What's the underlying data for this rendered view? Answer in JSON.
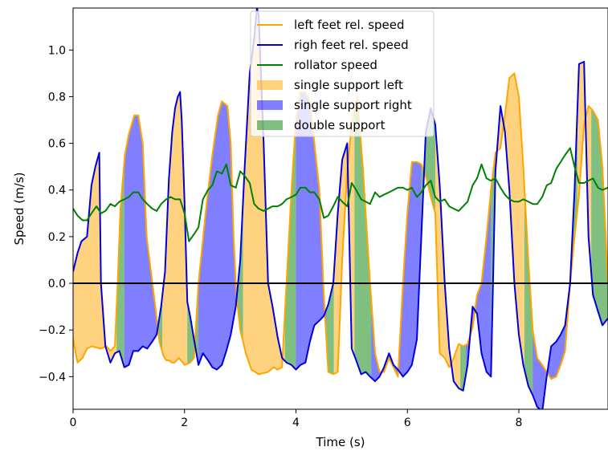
{
  "chart_data": {
    "type": "line",
    "title": "",
    "xlabel": "Time (s)",
    "ylabel": "Speed (m/s)",
    "xlim": [
      0,
      9.6
    ],
    "ylim": [
      -0.54,
      1.18
    ],
    "x_ticks": [
      0,
      2,
      4,
      6,
      8
    ],
    "y_ticks": [
      -0.4,
      -0.2,
      0.0,
      0.2,
      0.4,
      0.6,
      0.8,
      1.0
    ],
    "x_tick_labels": [
      "0",
      "2",
      "4",
      "6",
      "8"
    ],
    "y_tick_labels": [
      "−0.4",
      "−0.2",
      "0.0",
      "0.2",
      "0.4",
      "0.6",
      "0.8",
      "1.0"
    ],
    "grid": false,
    "legend_position": "top-center",
    "legend": [
      {
        "label": "left feet rel. speed",
        "kind": "line",
        "color": "#FFA500"
      },
      {
        "label": "righ feet rel. speed",
        "kind": "line",
        "color": "#0000DD"
      },
      {
        "label": "rollator speed",
        "kind": "line",
        "color": "#008000"
      },
      {
        "label": "single support left",
        "kind": "patch",
        "color": "#FFA500"
      },
      {
        "label": "single support right",
        "kind": "patch",
        "color": "#0000FF"
      },
      {
        "label": "double support",
        "kind": "patch",
        "color": "#008000"
      }
    ],
    "series": [
      {
        "name": "left feet rel. speed",
        "color": "#FFA500",
        "x": [
          0.0,
          0.08,
          0.17,
          0.25,
          0.33,
          0.5,
          0.6,
          0.67,
          0.75,
          0.8,
          0.85,
          0.93,
          1.0,
          1.1,
          1.17,
          1.25,
          1.32,
          1.45,
          1.55,
          1.62,
          1.67,
          1.72,
          1.77,
          1.82,
          1.9,
          2.0,
          2.1,
          2.17,
          2.25,
          2.4,
          2.5,
          2.6,
          2.67,
          2.77,
          2.83,
          2.88,
          2.93,
          3.0,
          3.1,
          3.2,
          3.33,
          3.5,
          3.6,
          3.67,
          3.75,
          3.83,
          3.92,
          4.0,
          4.08,
          4.17,
          4.25,
          4.33,
          4.42,
          4.5,
          4.58,
          4.67,
          4.75,
          4.83,
          4.92,
          5.0,
          5.1,
          5.2,
          5.33,
          5.42,
          5.5,
          5.58,
          5.67,
          5.75,
          5.83,
          5.92,
          6.0,
          6.08,
          6.17,
          6.25,
          6.33,
          6.42,
          6.5,
          6.58,
          6.67,
          6.75,
          6.83,
          6.92,
          7.0,
          7.08,
          7.17,
          7.25,
          7.33,
          7.42,
          7.5,
          7.58,
          7.67,
          7.75,
          7.83,
          7.92,
          8.0,
          8.08,
          8.17,
          8.25,
          8.33,
          8.42,
          8.5,
          8.58,
          8.67,
          8.75,
          8.83,
          8.92,
          9.0,
          9.08,
          9.17,
          9.25,
          9.33,
          9.42,
          9.5,
          9.6
        ],
        "y": [
          -0.24,
          -0.34,
          -0.32,
          -0.28,
          -0.27,
          -0.28,
          -0.27,
          -0.29,
          -0.27,
          0.0,
          0.32,
          0.55,
          0.64,
          0.72,
          0.72,
          0.6,
          0.2,
          -0.05,
          -0.25,
          -0.31,
          -0.33,
          -0.33,
          -0.34,
          -0.34,
          -0.32,
          -0.35,
          -0.34,
          -0.32,
          0.0,
          0.35,
          0.55,
          0.72,
          0.78,
          0.76,
          0.6,
          0.2,
          -0.05,
          -0.2,
          -0.3,
          -0.37,
          -0.39,
          -0.38,
          -0.36,
          -0.37,
          -0.36,
          0.0,
          0.4,
          0.7,
          0.82,
          0.82,
          0.78,
          0.6,
          0.4,
          -0.05,
          -0.38,
          -0.39,
          -0.38,
          0.1,
          0.48,
          0.68,
          0.8,
          0.5,
          0.0,
          -0.3,
          -0.38,
          -0.38,
          -0.32,
          -0.36,
          -0.4,
          0.0,
          0.3,
          0.52,
          0.52,
          0.51,
          0.46,
          0.37,
          0.3,
          -0.3,
          -0.32,
          -0.36,
          -0.32,
          -0.26,
          -0.27,
          -0.26,
          -0.19,
          -0.05,
          0.0,
          0.2,
          0.4,
          0.56,
          0.58,
          0.72,
          0.88,
          0.9,
          0.8,
          0.5,
          0.1,
          -0.2,
          -0.32,
          -0.35,
          -0.38,
          -0.41,
          -0.4,
          -0.35,
          -0.29,
          0.0,
          0.2,
          0.38,
          0.68,
          0.76,
          0.74,
          0.7,
          0.5,
          0.0
        ]
      },
      {
        "name": "righ feet rel. speed",
        "color": "#0000DD",
        "x": [
          0.0,
          0.08,
          0.15,
          0.25,
          0.33,
          0.4,
          0.47,
          0.5,
          0.58,
          0.67,
          0.75,
          0.83,
          0.92,
          1.0,
          1.08,
          1.17,
          1.25,
          1.33,
          1.42,
          1.5,
          1.58,
          1.65,
          1.72,
          1.78,
          1.83,
          1.88,
          1.92,
          1.95,
          2.0,
          2.05,
          2.1,
          2.17,
          2.25,
          2.33,
          2.42,
          2.5,
          2.58,
          2.67,
          2.75,
          2.83,
          2.92,
          3.0,
          3.08,
          3.17,
          3.25,
          3.3,
          3.33,
          3.42,
          3.5,
          3.58,
          3.67,
          3.75,
          3.83,
          3.92,
          4.0,
          4.08,
          4.17,
          4.25,
          4.33,
          4.42,
          4.5,
          4.58,
          4.67,
          4.75,
          4.83,
          4.92,
          5.0,
          5.08,
          5.17,
          5.25,
          5.33,
          5.42,
          5.5,
          5.58,
          5.67,
          5.75,
          5.83,
          5.92,
          6.0,
          6.08,
          6.17,
          6.25,
          6.33,
          6.42,
          6.5,
          6.58,
          6.67,
          6.75,
          6.83,
          6.92,
          7.0,
          7.08,
          7.17,
          7.25,
          7.33,
          7.42,
          7.5,
          7.58,
          7.67,
          7.75,
          7.83,
          7.92,
          8.0,
          8.08,
          8.17,
          8.25,
          8.33,
          8.42,
          8.5,
          8.58,
          8.67,
          8.75,
          8.83,
          8.92,
          9.0,
          9.08,
          9.17,
          9.25,
          9.33,
          9.42,
          9.5,
          9.6
        ],
        "y": [
          0.05,
          0.13,
          0.18,
          0.2,
          0.42,
          0.5,
          0.56,
          0.0,
          -0.27,
          -0.34,
          -0.3,
          -0.29,
          -0.36,
          -0.35,
          -0.29,
          -0.29,
          -0.27,
          -0.28,
          -0.25,
          -0.22,
          -0.1,
          0.05,
          0.45,
          0.65,
          0.75,
          0.8,
          0.82,
          0.7,
          0.35,
          -0.08,
          -0.14,
          -0.24,
          -0.35,
          -0.3,
          -0.33,
          -0.36,
          -0.37,
          -0.35,
          -0.29,
          -0.22,
          -0.1,
          0.1,
          0.5,
          0.9,
          1.05,
          1.18,
          1.15,
          0.6,
          0.0,
          -0.1,
          -0.23,
          -0.32,
          -0.34,
          -0.35,
          -0.37,
          -0.35,
          -0.34,
          -0.25,
          -0.18,
          -0.16,
          -0.14,
          -0.09,
          0.0,
          0.3,
          0.53,
          0.6,
          -0.28,
          -0.33,
          -0.39,
          -0.38,
          -0.4,
          -0.42,
          -0.4,
          -0.36,
          -0.3,
          -0.35,
          -0.37,
          -0.4,
          -0.38,
          -0.35,
          -0.24,
          0.2,
          0.65,
          0.75,
          0.68,
          0.42,
          0.0,
          -0.28,
          -0.42,
          -0.45,
          -0.46,
          -0.35,
          -0.1,
          -0.13,
          -0.3,
          -0.38,
          -0.4,
          0.48,
          0.76,
          0.65,
          0.4,
          0.0,
          -0.22,
          -0.35,
          -0.44,
          -0.48,
          -0.53,
          -0.55,
          -0.4,
          -0.27,
          -0.25,
          -0.22,
          -0.18,
          0.0,
          0.4,
          0.94,
          0.95,
          0.2,
          -0.05,
          -0.12,
          -0.18,
          -0.15
        ]
      },
      {
        "name": "rollator speed",
        "color": "#008000",
        "x": [
          0.0,
          0.08,
          0.17,
          0.25,
          0.33,
          0.42,
          0.5,
          0.58,
          0.67,
          0.75,
          0.83,
          0.92,
          1.0,
          1.08,
          1.17,
          1.25,
          1.33,
          1.42,
          1.5,
          1.58,
          1.67,
          1.75,
          1.83,
          1.92,
          2.0,
          2.08,
          2.17,
          2.25,
          2.33,
          2.42,
          2.5,
          2.58,
          2.67,
          2.75,
          2.83,
          2.92,
          3.0,
          3.08,
          3.17,
          3.25,
          3.33,
          3.42,
          3.5,
          3.58,
          3.67,
          3.75,
          3.83,
          3.92,
          4.0,
          4.08,
          4.17,
          4.25,
          4.33,
          4.42,
          4.5,
          4.58,
          4.67,
          4.75,
          4.83,
          4.92,
          5.0,
          5.08,
          5.17,
          5.25,
          5.33,
          5.42,
          5.5,
          5.58,
          5.67,
          5.75,
          5.83,
          5.92,
          6.0,
          6.08,
          6.17,
          6.25,
          6.33,
          6.42,
          6.5,
          6.58,
          6.67,
          6.75,
          6.83,
          6.92,
          7.0,
          7.08,
          7.17,
          7.25,
          7.33,
          7.42,
          7.5,
          7.58,
          7.67,
          7.75,
          7.83,
          7.92,
          8.0,
          8.08,
          8.17,
          8.25,
          8.33,
          8.42,
          8.5,
          8.58,
          8.67,
          8.75,
          8.83,
          8.92,
          9.0,
          9.08,
          9.17,
          9.25,
          9.33,
          9.42,
          9.5,
          9.6
        ],
        "y": [
          0.32,
          0.29,
          0.27,
          0.27,
          0.3,
          0.33,
          0.3,
          0.31,
          0.34,
          0.33,
          0.35,
          0.36,
          0.37,
          0.39,
          0.39,
          0.36,
          0.34,
          0.32,
          0.31,
          0.34,
          0.36,
          0.37,
          0.36,
          0.36,
          0.3,
          0.18,
          0.21,
          0.24,
          0.36,
          0.4,
          0.42,
          0.48,
          0.47,
          0.51,
          0.42,
          0.41,
          0.48,
          0.46,
          0.43,
          0.34,
          0.32,
          0.31,
          0.32,
          0.33,
          0.33,
          0.34,
          0.36,
          0.37,
          0.38,
          0.41,
          0.41,
          0.39,
          0.39,
          0.36,
          0.28,
          0.29,
          0.33,
          0.37,
          0.35,
          0.33,
          0.43,
          0.4,
          0.36,
          0.35,
          0.34,
          0.39,
          0.37,
          0.38,
          0.39,
          0.4,
          0.41,
          0.41,
          0.4,
          0.41,
          0.37,
          0.39,
          0.42,
          0.44,
          0.37,
          0.35,
          0.36,
          0.33,
          0.32,
          0.31,
          0.33,
          0.35,
          0.42,
          0.45,
          0.51,
          0.45,
          0.44,
          0.45,
          0.41,
          0.38,
          0.36,
          0.35,
          0.35,
          0.36,
          0.35,
          0.34,
          0.34,
          0.37,
          0.42,
          0.43,
          0.49,
          0.52,
          0.55,
          0.58,
          0.5,
          0.43,
          0.43,
          0.44,
          0.45,
          0.41,
          0.4,
          0.41
        ]
      }
    ],
    "phases": [
      {
        "name": "single support left",
        "start": 0.0,
        "end": 0.78
      },
      {
        "name": "double support",
        "start": 0.78,
        "end": 0.92
      },
      {
        "name": "single support right",
        "start": 0.92,
        "end": 1.5
      },
      {
        "name": "double support",
        "start": 1.5,
        "end": 1.6
      },
      {
        "name": "single support left",
        "start": 1.6,
        "end": 2.05
      },
      {
        "name": "double support",
        "start": 2.05,
        "end": 2.25
      },
      {
        "name": "single support right",
        "start": 2.25,
        "end": 2.95
      },
      {
        "name": "double support",
        "start": 2.95,
        "end": 3.05
      },
      {
        "name": "single support left",
        "start": 3.05,
        "end": 3.8
      },
      {
        "name": "double support",
        "start": 3.8,
        "end": 4.0
      },
      {
        "name": "single support right",
        "start": 4.0,
        "end": 4.55
      },
      {
        "name": "double support",
        "start": 4.55,
        "end": 4.68
      },
      {
        "name": "single support left",
        "start": 4.68,
        "end": 5.05
      },
      {
        "name": "double support",
        "start": 5.05,
        "end": 5.35
      },
      {
        "name": "single support right",
        "start": 5.35,
        "end": 6.25
      },
      {
        "name": "double support",
        "start": 6.25,
        "end": 6.5
      },
      {
        "name": "single support left",
        "start": 6.5,
        "end": 6.95
      },
      {
        "name": "double support",
        "start": 6.95,
        "end": 7.05
      },
      {
        "name": "single support right",
        "start": 7.05,
        "end": 7.5
      },
      {
        "name": "double support",
        "start": 7.5,
        "end": 7.58
      },
      {
        "name": "single support left",
        "start": 7.58,
        "end": 8.1
      },
      {
        "name": "double support",
        "start": 8.1,
        "end": 8.25
      },
      {
        "name": "single support right",
        "start": 8.25,
        "end": 8.95
      },
      {
        "name": "double support",
        "start": 8.95,
        "end": 9.05
      },
      {
        "name": "single support left",
        "start": 9.05,
        "end": 9.3
      },
      {
        "name": "double support",
        "start": 9.3,
        "end": 9.6
      }
    ],
    "reference_line": {
      "y": 0.0,
      "color": "#000000"
    }
  }
}
